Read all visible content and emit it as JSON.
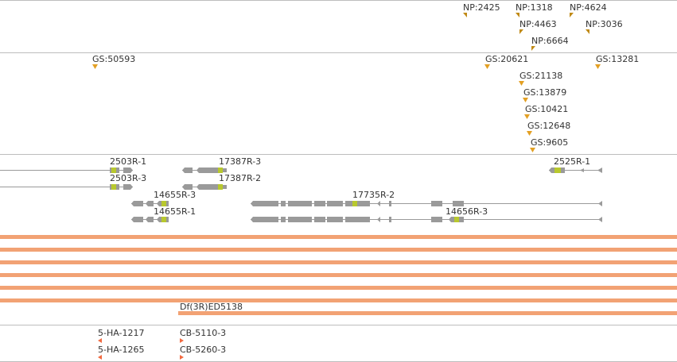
{
  "colors": {
    "separator": "#bdbdbd",
    "label": "#333333",
    "np_marker": "#c08a16",
    "gs_marker": "#e3a024",
    "gene": "#9a9a9a",
    "cds": "#b8c82e",
    "deficiency": "#f2a274",
    "insertion_marker": "#f26a40"
  },
  "tracks": {
    "np_insertions": [
      {
        "label": "NP:2425"
      },
      {
        "label": "NP:1318"
      },
      {
        "label": "NP:4624"
      },
      {
        "label": "NP:4463"
      },
      {
        "label": "NP:3036"
      },
      {
        "label": "NP:6664"
      }
    ],
    "gs_insertions": [
      {
        "label": "GS:50593"
      },
      {
        "label": "GS:20621"
      },
      {
        "label": "GS:13281"
      },
      {
        "label": "GS:21138"
      },
      {
        "label": "GS:13879"
      },
      {
        "label": "GS:10421"
      },
      {
        "label": "GS:12648"
      },
      {
        "label": "GS:9605"
      }
    ],
    "transcripts": [
      {
        "label": "2503R-1"
      },
      {
        "label": "17387R-3"
      },
      {
        "label": "2525R-1"
      },
      {
        "label": "2503R-3"
      },
      {
        "label": "17387R-2"
      },
      {
        "label": "14655R-3"
      },
      {
        "label": "17735R-2"
      },
      {
        "label": "14655R-1"
      },
      {
        "label": "14656R-3"
      }
    ],
    "deficiencies": [
      {
        "label": ""
      },
      {
        "label": ""
      },
      {
        "label": ""
      },
      {
        "label": ""
      },
      {
        "label": ""
      },
      {
        "label": ""
      },
      {
        "label": "Df(3R)ED5138"
      }
    ],
    "other_insertions": [
      {
        "label": "5-HA-1217"
      },
      {
        "label": "CB-5110-3"
      },
      {
        "label": "5-HA-1265"
      },
      {
        "label": "CB-5260-3"
      }
    ]
  }
}
